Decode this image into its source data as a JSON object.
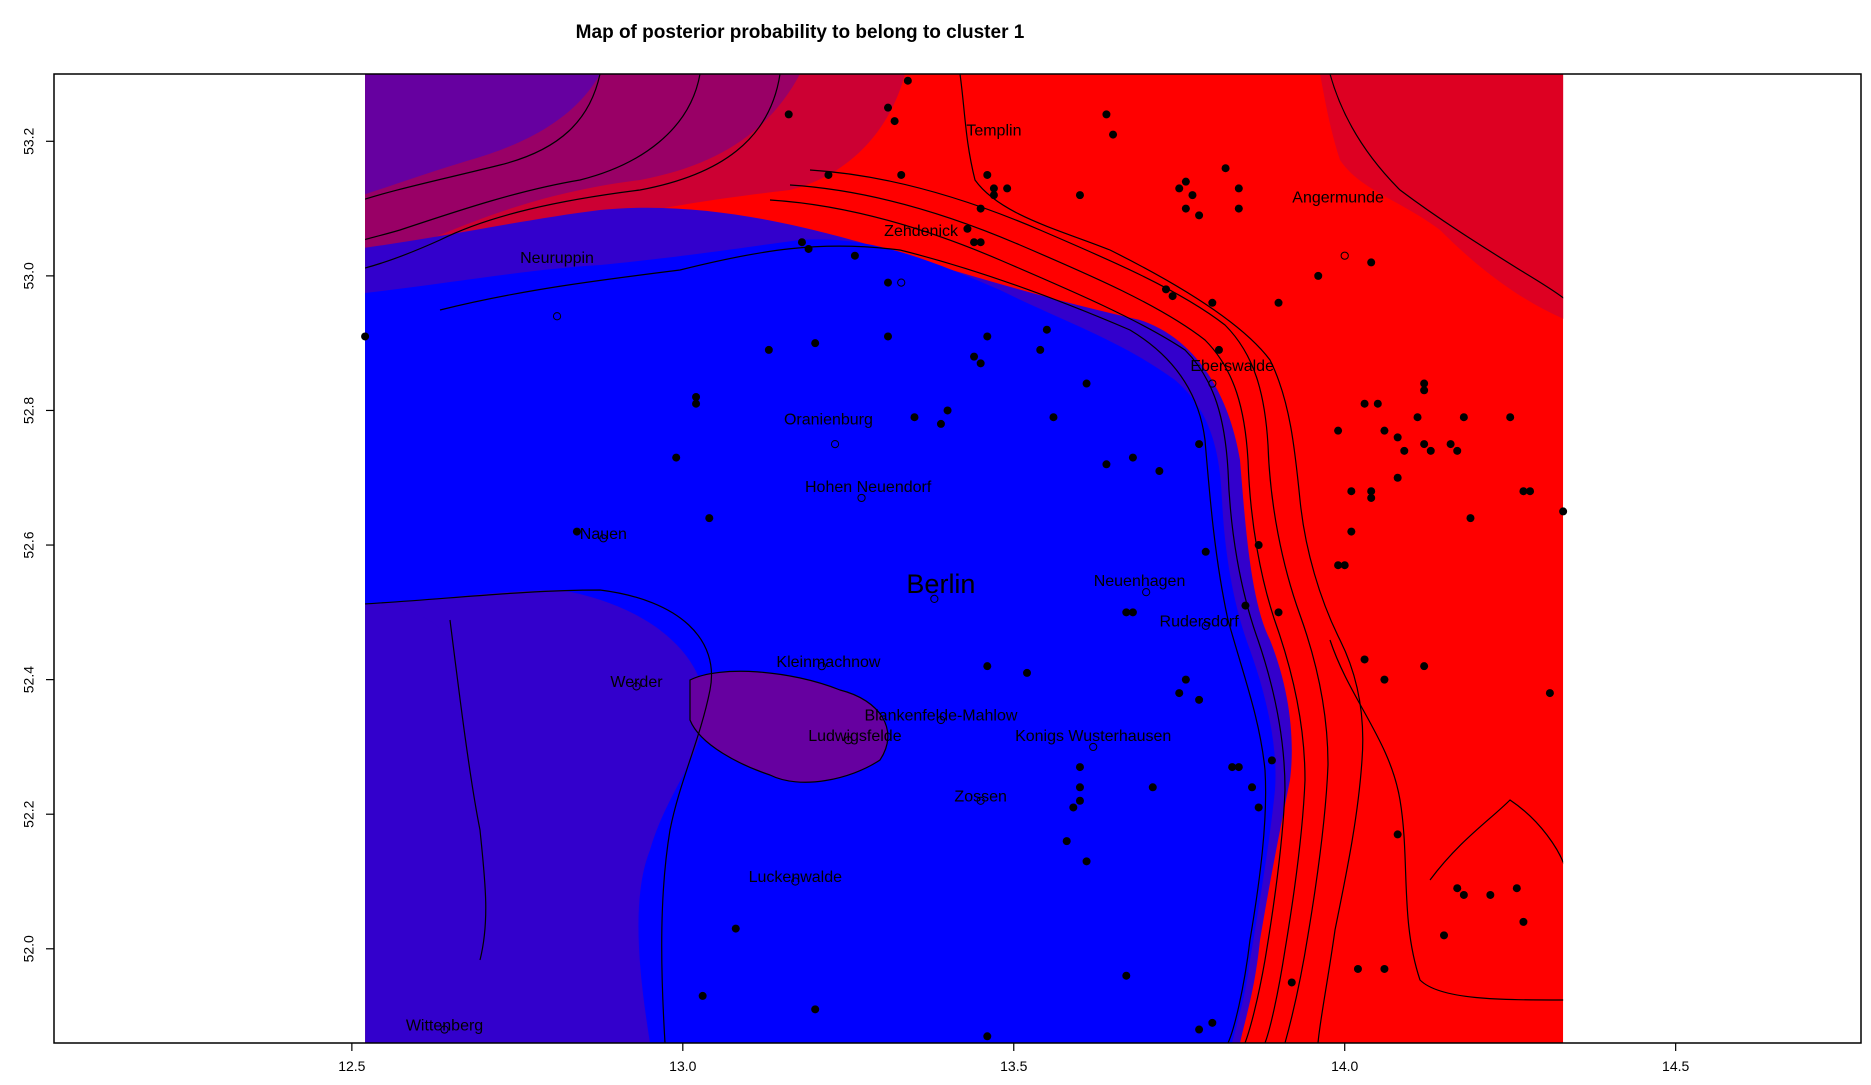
{
  "title": "Map of posterior probability to belong to cluster  1",
  "colors": {
    "blue": "#0000ff",
    "indigo": "#3300cc",
    "purple_mid": "#6600a0",
    "purple_red": "#990066",
    "crimson": "#cc0033",
    "red": "#ff0000",
    "dark_red": "#dd0022"
  },
  "axes": {
    "xlim": [
      12.05,
      14.78
    ],
    "ylim": [
      51.86,
      53.3
    ],
    "xticks": [
      12.5,
      13.0,
      13.5,
      14.0,
      14.5
    ],
    "xtick_labels": [
      "12.5",
      "13.0",
      "13.5",
      "14.0",
      "14.5"
    ],
    "yticks": [
      52.0,
      52.2,
      52.4,
      52.6,
      52.8,
      53.0,
      53.2
    ],
    "ytick_labels": [
      "52.0",
      "52.2",
      "52.4",
      "52.6",
      "52.8",
      "53.0",
      "53.2"
    ],
    "raster_xrange": [
      12.52,
      14.33
    ]
  },
  "cities": [
    {
      "name": "Templin",
      "lon": 13.47,
      "lat": 53.2,
      "size": "normal"
    },
    {
      "name": "Angermunde",
      "lon": 13.99,
      "lat": 53.1,
      "size": "normal"
    },
    {
      "name": "Zehdenick",
      "lon": 13.36,
      "lat": 53.05,
      "size": "normal"
    },
    {
      "name": "Neuruppin",
      "lon": 12.81,
      "lat": 53.01,
      "size": "normal"
    },
    {
      "name": "Eberswalde",
      "lon": 13.83,
      "lat": 52.85,
      "size": "normal"
    },
    {
      "name": "Oranienburg",
      "lon": 13.22,
      "lat": 52.77,
      "size": "normal"
    },
    {
      "name": "Hohen Neuendorf",
      "lon": 13.28,
      "lat": 52.67,
      "size": "normal"
    },
    {
      "name": "Nauen",
      "lon": 12.88,
      "lat": 52.6,
      "size": "normal"
    },
    {
      "name": "Berlin",
      "lon": 13.39,
      "lat": 52.52,
      "size": "big"
    },
    {
      "name": "Neuenhagen",
      "lon": 13.69,
      "lat": 52.53,
      "size": "normal"
    },
    {
      "name": "Rudersdorf",
      "lon": 13.78,
      "lat": 52.47,
      "size": "normal"
    },
    {
      "name": "Kleinmachnow",
      "lon": 13.22,
      "lat": 52.41,
      "size": "normal"
    },
    {
      "name": "Werder",
      "lon": 12.93,
      "lat": 52.38,
      "size": "normal"
    },
    {
      "name": "Blankenfelde-Mahlow",
      "lon": 13.39,
      "lat": 52.33,
      "size": "normal"
    },
    {
      "name": "Ludwigsfelde",
      "lon": 13.26,
      "lat": 52.3,
      "size": "normal"
    },
    {
      "name": "Konigs Wusterhausen",
      "lon": 13.62,
      "lat": 52.3,
      "size": "normal"
    },
    {
      "name": "Zossen",
      "lon": 13.45,
      "lat": 52.21,
      "size": "normal"
    },
    {
      "name": "Luckenwalde",
      "lon": 13.17,
      "lat": 52.09,
      "size": "normal"
    },
    {
      "name": "Wittenberg",
      "lon": 12.64,
      "lat": 51.87,
      "size": "normal"
    }
  ],
  "points_filled": [
    [
      13.34,
      53.29
    ],
    [
      13.16,
      53.24
    ],
    [
      13.31,
      53.25
    ],
    [
      13.32,
      53.23
    ],
    [
      13.22,
      53.15
    ],
    [
      13.33,
      53.15
    ],
    [
      13.46,
      53.15
    ],
    [
      13.47,
      53.13
    ],
    [
      13.49,
      53.13
    ],
    [
      13.47,
      53.12
    ],
    [
      13.45,
      53.1
    ],
    [
      13.43,
      53.07
    ],
    [
      13.44,
      53.05
    ],
    [
      13.45,
      53.05
    ],
    [
      13.18,
      53.05
    ],
    [
      13.19,
      53.04
    ],
    [
      13.26,
      53.03
    ],
    [
      13.31,
      52.99
    ],
    [
      13.64,
      53.24
    ],
    [
      13.65,
      53.21
    ],
    [
      13.6,
      53.12
    ],
    [
      13.76,
      53.14
    ],
    [
      13.75,
      53.13
    ],
    [
      13.77,
      53.12
    ],
    [
      13.76,
      53.1
    ],
    [
      13.78,
      53.09
    ],
    [
      13.82,
      53.16
    ],
    [
      13.84,
      53.13
    ],
    [
      13.84,
      53.1
    ],
    [
      14.04,
      53.02
    ],
    [
      13.96,
      53
    ],
    [
      13.73,
      52.98
    ],
    [
      13.74,
      52.97
    ],
    [
      13.8,
      52.96
    ],
    [
      13.9,
      52.96
    ],
    [
      13.13,
      52.89
    ],
    [
      13.2,
      52.9
    ],
    [
      13.31,
      52.91
    ],
    [
      13.46,
      52.91
    ],
    [
      13.55,
      52.92
    ],
    [
      13.54,
      52.89
    ],
    [
      13.44,
      52.88
    ],
    [
      13.45,
      52.87
    ],
    [
      13.61,
      52.84
    ],
    [
      13.81,
      52.89
    ],
    [
      12.52,
      52.91
    ],
    [
      13.02,
      52.82
    ],
    [
      13.02,
      52.81
    ],
    [
      13.35,
      52.79
    ],
    [
      13.4,
      52.8
    ],
    [
      13.39,
      52.78
    ],
    [
      13.56,
      52.79
    ],
    [
      12.99,
      52.73
    ],
    [
      13.64,
      52.72
    ],
    [
      13.68,
      52.73
    ],
    [
      13.72,
      52.71
    ],
    [
      13.78,
      52.75
    ],
    [
      13.99,
      52.77
    ],
    [
      14.03,
      52.81
    ],
    [
      14.05,
      52.81
    ],
    [
      14.06,
      52.77
    ],
    [
      14.08,
      52.76
    ],
    [
      14.09,
      52.74
    ],
    [
      14.11,
      52.79
    ],
    [
      14.12,
      52.75
    ],
    [
      14.12,
      52.84
    ],
    [
      14.12,
      52.83
    ],
    [
      14.17,
      52.74
    ],
    [
      14.16,
      52.75
    ],
    [
      14.13,
      52.74
    ],
    [
      14.18,
      52.79
    ],
    [
      14.25,
      52.79
    ],
    [
      14.27,
      52.68
    ],
    [
      14.28,
      52.68
    ],
    [
      14.04,
      52.68
    ],
    [
      14.04,
      52.67
    ],
    [
      14.08,
      52.7
    ],
    [
      14.01,
      52.68
    ],
    [
      13.04,
      52.64
    ],
    [
      12.84,
      52.62
    ],
    [
      14.01,
      52.62
    ],
    [
      14.19,
      52.64
    ],
    [
      14.33,
      52.65
    ],
    [
      13.87,
      52.6
    ],
    [
      13.79,
      52.59
    ],
    [
      13.99,
      52.57
    ],
    [
      14.0,
      52.57
    ],
    [
      13.67,
      52.5
    ],
    [
      13.68,
      52.5
    ],
    [
      13.85,
      52.51
    ],
    [
      13.9,
      52.5
    ],
    [
      14.03,
      52.43
    ],
    [
      14.06,
      52.4
    ],
    [
      14.12,
      52.42
    ],
    [
      13.46,
      52.42
    ],
    [
      13.52,
      52.41
    ],
    [
      13.76,
      52.4
    ],
    [
      13.75,
      52.38
    ],
    [
      13.78,
      52.37
    ],
    [
      14.31,
      52.38
    ],
    [
      13.6,
      52.27
    ],
    [
      13.6,
      52.24
    ],
    [
      13.6,
      52.22
    ],
    [
      13.59,
      52.21
    ],
    [
      13.71,
      52.24
    ],
    [
      13.83,
      52.27
    ],
    [
      13.84,
      52.27
    ],
    [
      13.86,
      52.24
    ],
    [
      13.89,
      52.28
    ],
    [
      13.87,
      52.21
    ],
    [
      13.58,
      52.16
    ],
    [
      13.61,
      52.13
    ],
    [
      14.08,
      52.17
    ],
    [
      14.17,
      52.09
    ],
    [
      14.18,
      52.08
    ],
    [
      14.22,
      52.08
    ],
    [
      14.26,
      52.09
    ],
    [
      14.27,
      52.04
    ],
    [
      14.15,
      52.02
    ],
    [
      13.08,
      52.03
    ],
    [
      13.03,
      51.93
    ],
    [
      13.2,
      51.91
    ],
    [
      13.67,
      51.96
    ],
    [
      13.92,
      51.95
    ],
    [
      14.02,
      51.97
    ],
    [
      14.06,
      51.97
    ],
    [
      13.78,
      51.88
    ],
    [
      13.8,
      51.89
    ],
    [
      13.46,
      51.87
    ]
  ],
  "points_open": [
    [
      12.81,
      52.94
    ],
    [
      13.33,
      52.99
    ],
    [
      14.0,
      53.03
    ],
    [
      13.8,
      52.84
    ],
    [
      13.23,
      52.75
    ],
    [
      13.27,
      52.67
    ],
    [
      12.88,
      52.61
    ],
    [
      13.38,
      52.52
    ],
    [
      13.7,
      52.53
    ],
    [
      13.79,
      52.48
    ],
    [
      13.21,
      52.42
    ],
    [
      12.93,
      52.39
    ],
    [
      13.39,
      52.34
    ],
    [
      13.25,
      52.31
    ],
    [
      13.62,
      52.3
    ],
    [
      13.45,
      52.22
    ],
    [
      13.17,
      52.1
    ],
    [
      12.64,
      51.88
    ]
  ]
}
